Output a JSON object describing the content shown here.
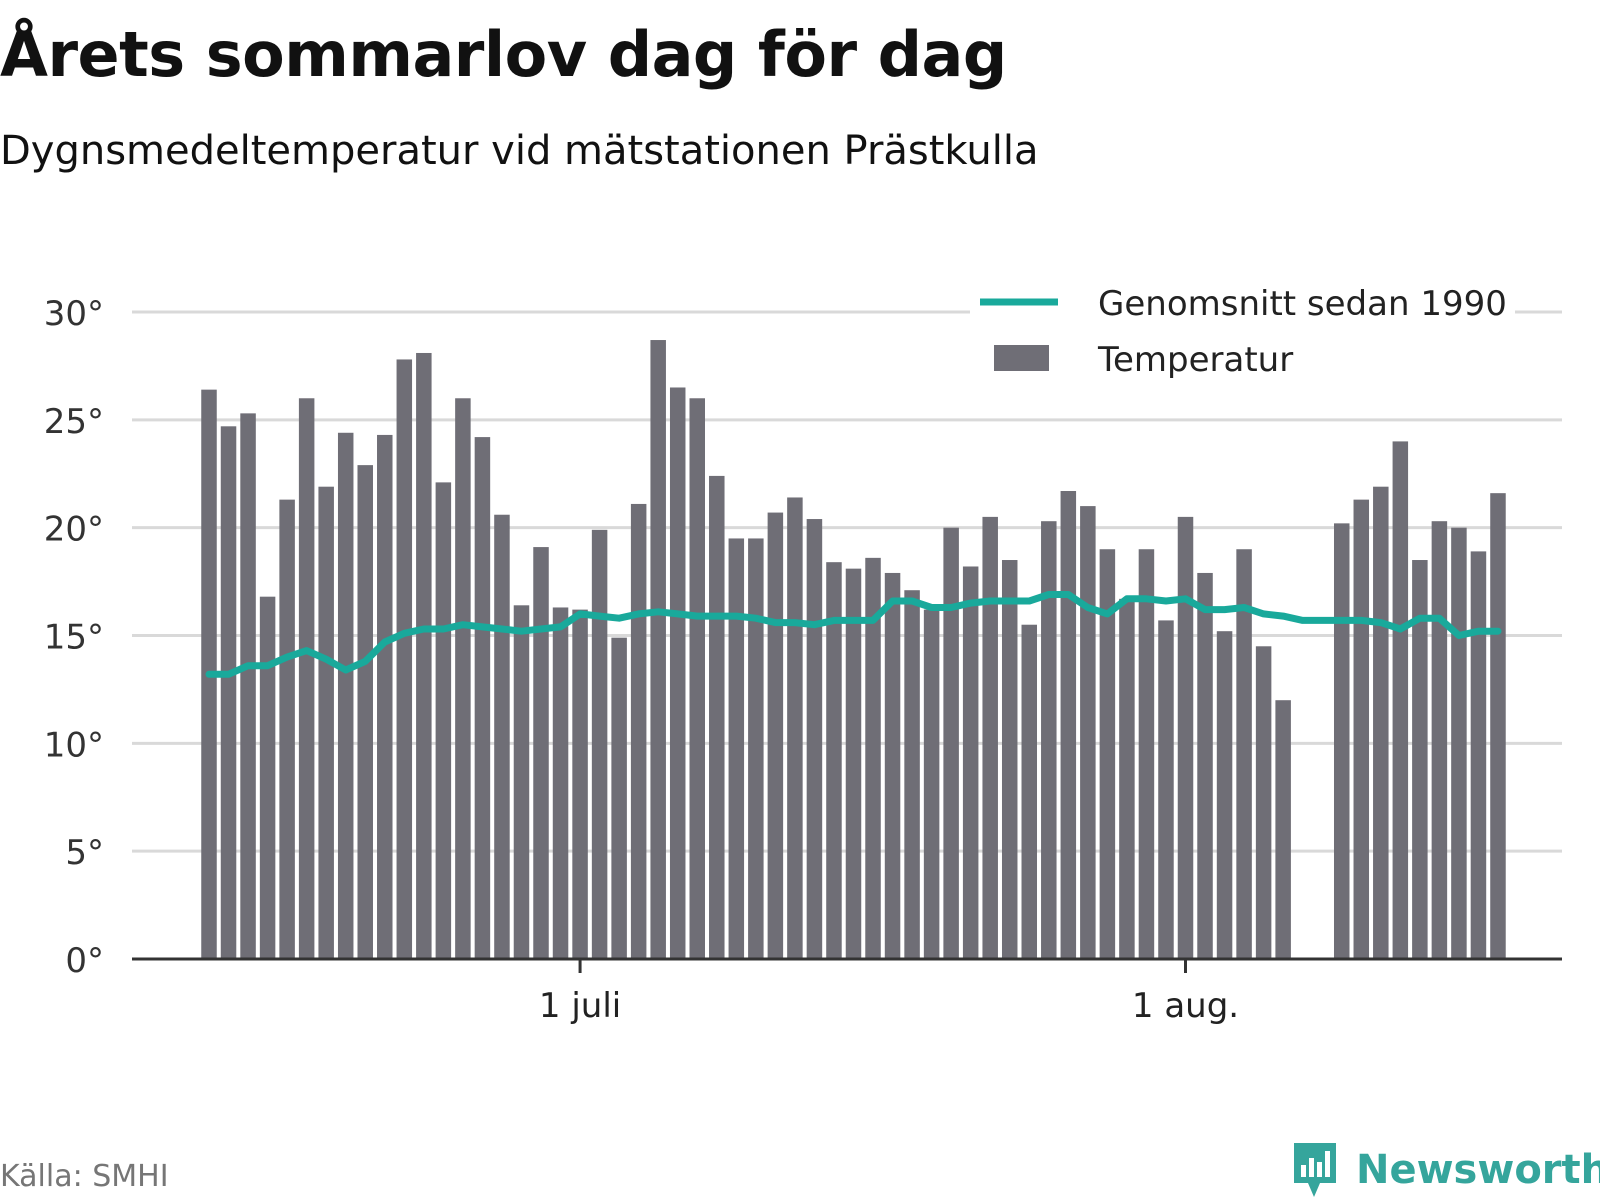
{
  "title": "Årets sommarlov dag för dag",
  "subtitle": "Dygnsmedeltemperatur vid mätstationen Prästkulla",
  "source": "Källa: SMHI",
  "brand": {
    "name": "Newsworthy",
    "icon": "newsworthy-logo-icon",
    "color": "#35a59c"
  },
  "colors": {
    "bars": "#6f6e76",
    "line": "#19a99b",
    "grid": "#d9d9d9",
    "axis": "#333333"
  },
  "chart_data": {
    "type": "bar",
    "title": "Årets sommarlov dag för dag",
    "subtitle": "Dygnsmedeltemperatur vid mätstationen Prästkulla",
    "start_date": "2018-06-12",
    "x_ticks": [
      {
        "date": "2018-07-01",
        "label": "1 juli"
      },
      {
        "date": "2018-08-01",
        "label": "1 aug."
      }
    ],
    "y_ticks": [
      {
        "value": 0,
        "label": "0°"
      },
      {
        "value": 5,
        "label": "5°"
      },
      {
        "value": 10,
        "label": "10°"
      },
      {
        "value": 15,
        "label": "15°"
      },
      {
        "value": 20,
        "label": "20°"
      },
      {
        "value": 25,
        "label": "25°"
      },
      {
        "value": 30,
        "label": "30°"
      }
    ],
    "ylim": [
      0,
      30
    ],
    "grid": true,
    "legend_position": "top-right",
    "series": [
      {
        "name": "Temperatur",
        "type": "bar",
        "values": [
          26.4,
          24.7,
          25.3,
          16.8,
          21.3,
          26.0,
          21.9,
          24.4,
          22.9,
          24.3,
          27.8,
          28.1,
          22.1,
          26.0,
          24.2,
          20.6,
          16.4,
          19.1,
          16.3,
          16.2,
          19.9,
          14.9,
          21.1,
          28.7,
          26.5,
          26.0,
          22.4,
          19.5,
          19.5,
          20.7,
          21.4,
          20.4,
          18.4,
          18.1,
          18.6,
          17.9,
          17.1,
          16.2,
          20.0,
          18.2,
          20.5,
          18.5,
          15.5,
          20.3,
          21.7,
          21.0,
          19.0,
          16.7,
          19.0,
          15.7,
          20.5,
          17.9,
          15.2,
          19.0,
          14.5,
          12.0,
          null,
          null,
          20.2,
          21.3,
          21.9,
          24.0,
          18.5,
          20.3,
          20.0,
          18.9,
          21.6
        ]
      },
      {
        "name": "Genomsnitt sedan 1990",
        "type": "line",
        "values": [
          13.2,
          13.2,
          13.6,
          13.6,
          14.0,
          14.3,
          13.9,
          13.4,
          13.8,
          14.7,
          15.1,
          15.3,
          15.3,
          15.5,
          15.4,
          15.3,
          15.2,
          15.3,
          15.4,
          16.0,
          15.9,
          15.8,
          16.0,
          16.1,
          16.0,
          15.9,
          15.9,
          15.9,
          15.8,
          15.6,
          15.6,
          15.5,
          15.7,
          15.7,
          15.7,
          16.6,
          16.6,
          16.3,
          16.3,
          16.5,
          16.6,
          16.6,
          16.6,
          16.9,
          16.9,
          16.3,
          16.0,
          16.7,
          16.7,
          16.6,
          16.7,
          16.2,
          16.2,
          16.3,
          16.0,
          15.9,
          15.7,
          15.7,
          15.7,
          15.7,
          15.6,
          15.3,
          15.8,
          15.8,
          15.0,
          15.2,
          15.2
        ]
      }
    ]
  }
}
